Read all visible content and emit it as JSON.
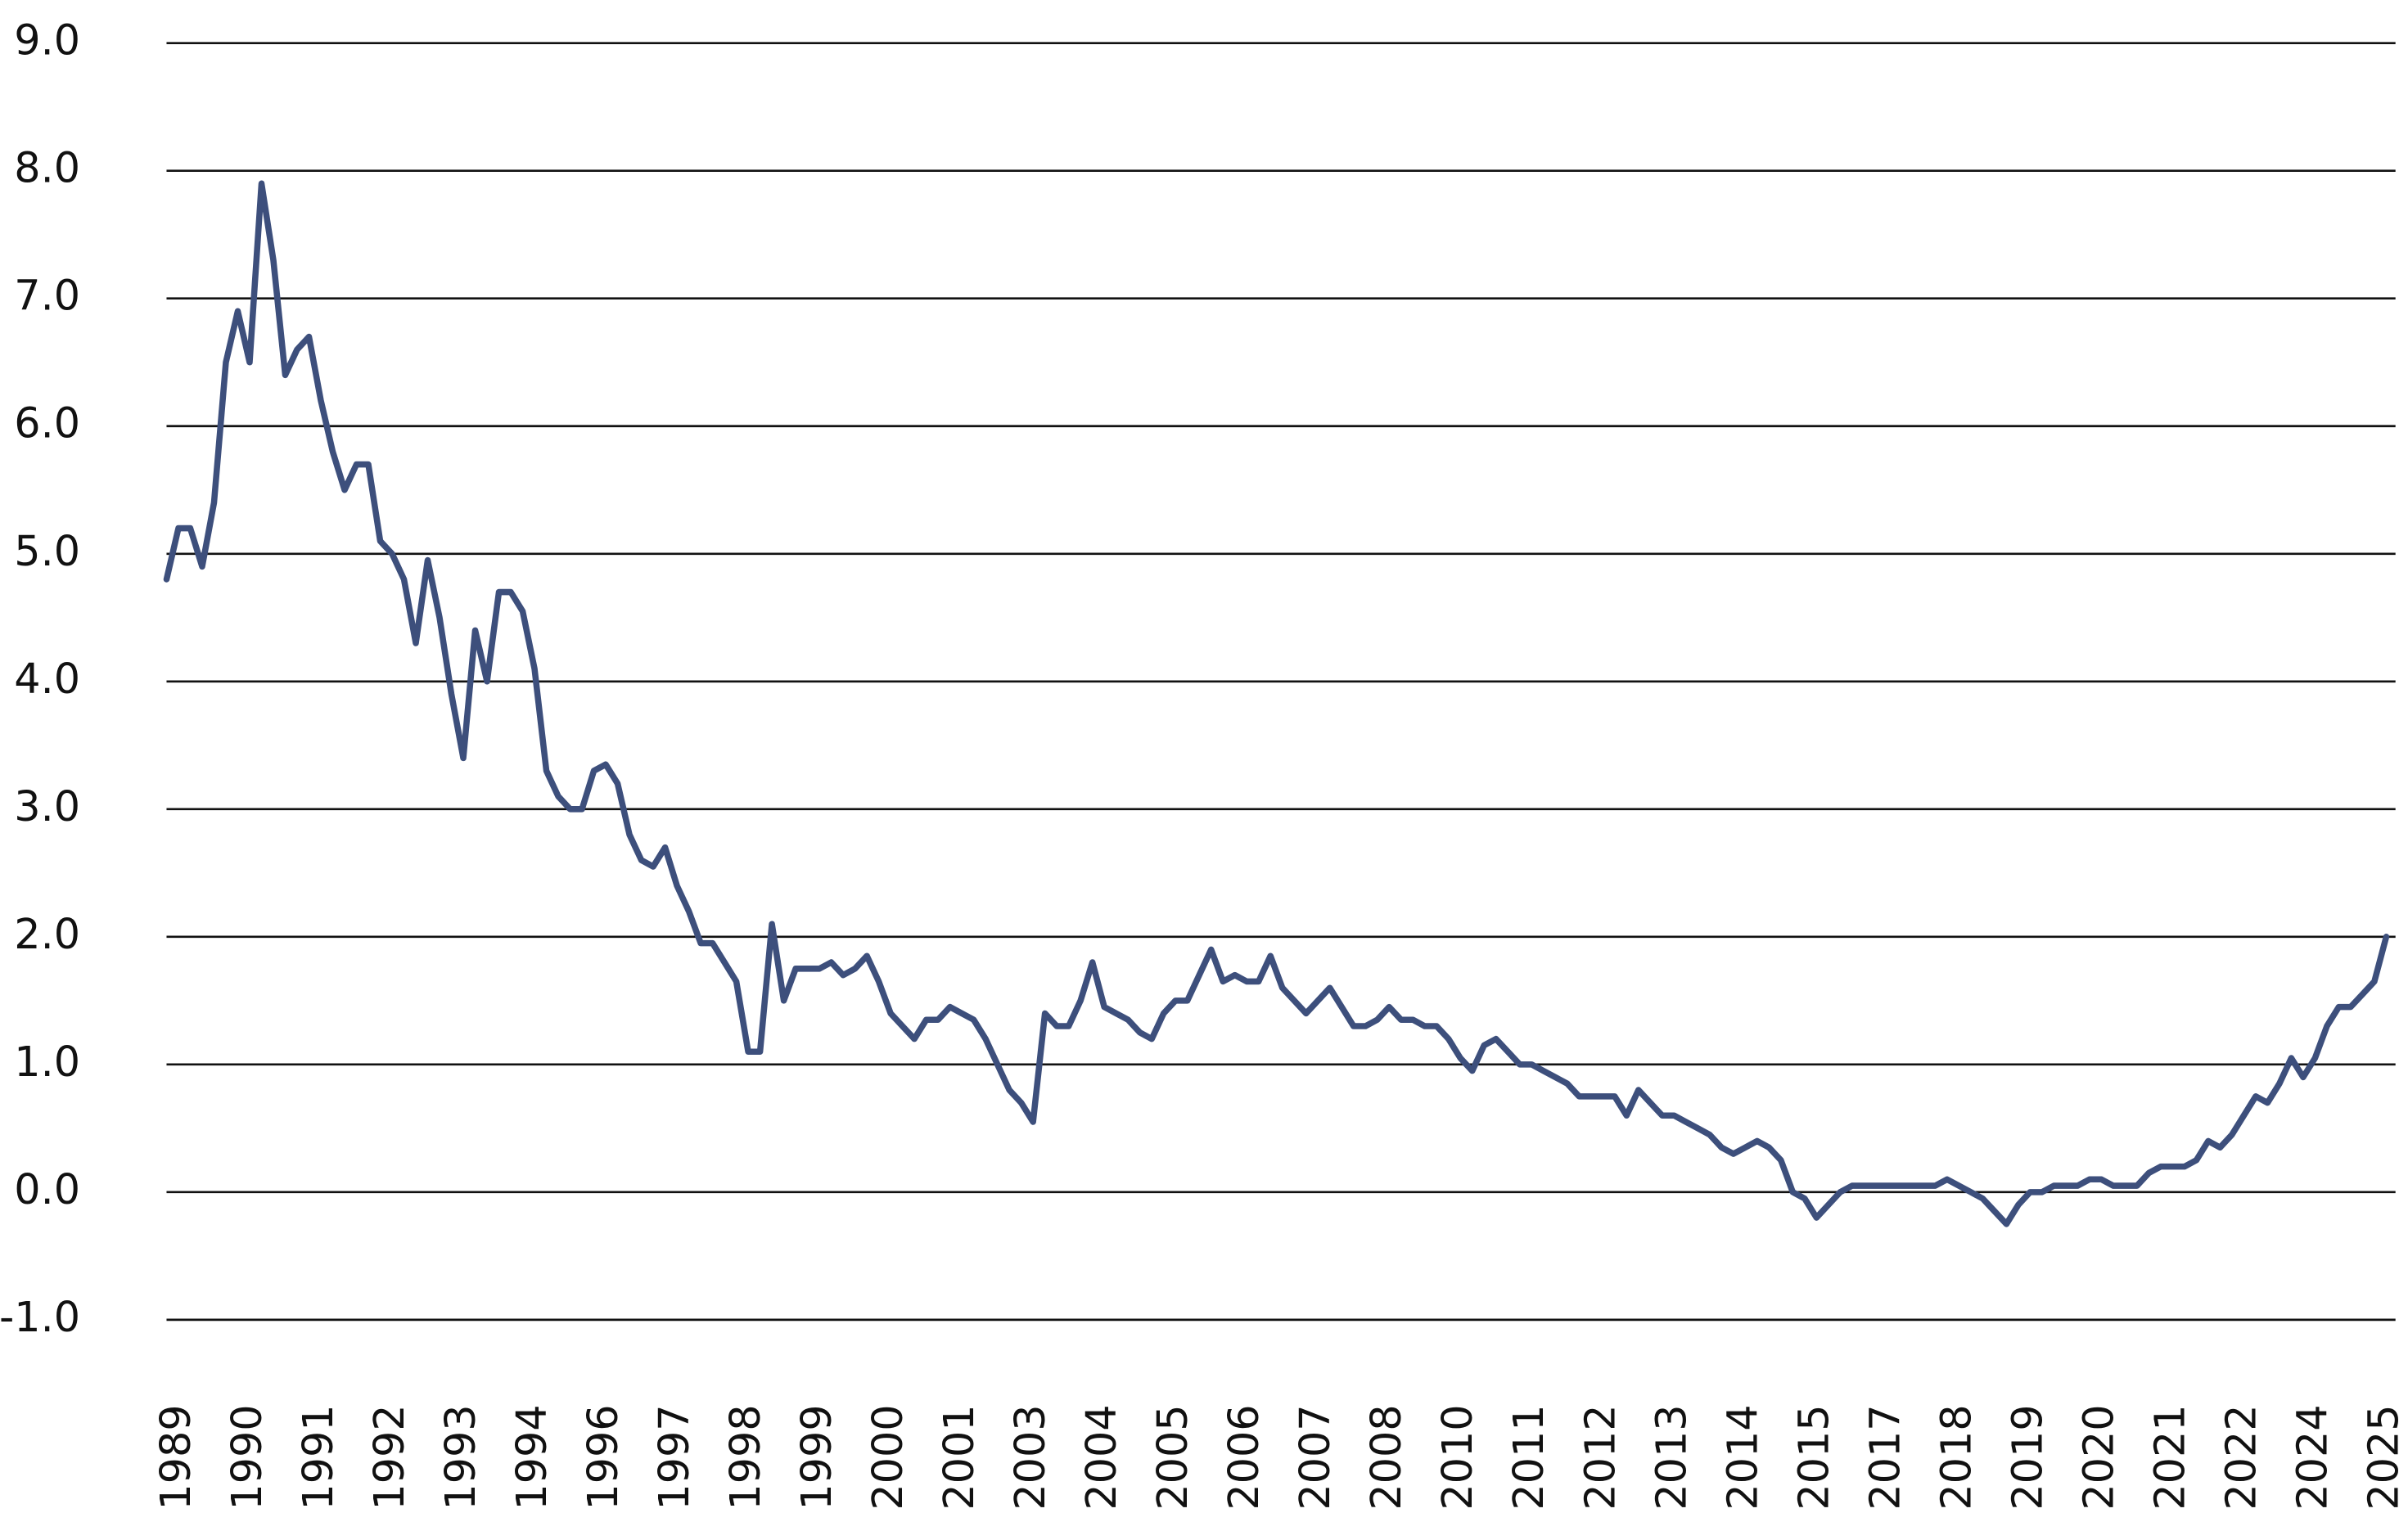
{
  "chart_data": {
    "type": "line",
    "color": "#3d4f7c",
    "grid": true,
    "ylim": [
      -1,
      9
    ],
    "yticks": [
      {
        "value": -1,
        "label": "-1.0"
      },
      {
        "value": 0,
        "label": "0.0"
      },
      {
        "value": 1,
        "label": "1.0"
      },
      {
        "value": 2,
        "label": "2.0"
      },
      {
        "value": 3,
        "label": "3.0"
      },
      {
        "value": 4,
        "label": "4.0"
      },
      {
        "value": 5,
        "label": "5.0"
      },
      {
        "value": 6,
        "label": "6.0"
      },
      {
        "value": 7,
        "label": "7.0"
      },
      {
        "value": 8,
        "label": "8.0"
      },
      {
        "value": 9,
        "label": "9.0"
      }
    ],
    "categories": [
      null,
      "1989",
      null,
      null,
      null,
      null,
      null,
      "1990",
      null,
      null,
      null,
      null,
      null,
      "1991",
      null,
      null,
      null,
      null,
      null,
      "1992",
      null,
      null,
      null,
      null,
      null,
      "1993",
      null,
      null,
      null,
      null,
      null,
      "1994",
      null,
      null,
      null,
      null,
      null,
      "1996",
      null,
      null,
      null,
      null,
      null,
      "1997",
      null,
      null,
      null,
      null,
      null,
      "1998",
      null,
      null,
      null,
      null,
      null,
      "1999",
      null,
      null,
      null,
      null,
      null,
      "2000",
      null,
      null,
      null,
      null,
      null,
      "2001",
      null,
      null,
      null,
      null,
      null,
      "2003",
      null,
      null,
      null,
      null,
      null,
      "2004",
      null,
      null,
      null,
      null,
      null,
      "2005",
      null,
      null,
      null,
      null,
      null,
      "2006",
      null,
      null,
      null,
      null,
      null,
      "2007",
      null,
      null,
      null,
      null,
      null,
      "2008",
      null,
      null,
      null,
      null,
      null,
      "2010",
      null,
      null,
      null,
      null,
      null,
      "2011",
      null,
      null,
      null,
      null,
      null,
      "2012",
      null,
      null,
      null,
      null,
      null,
      "2013",
      null,
      null,
      null,
      null,
      null,
      "2014",
      null,
      null,
      null,
      null,
      null,
      "2015",
      null,
      null,
      null,
      null,
      null,
      "2017",
      null,
      null,
      null,
      null,
      null,
      "2018",
      null,
      null,
      null,
      null,
      null,
      "2019",
      null,
      null,
      null,
      null,
      null,
      "2020",
      null,
      null,
      null,
      null,
      null,
      "2021",
      null,
      null,
      null,
      null,
      null,
      "2022",
      null,
      null,
      null,
      null,
      null,
      "2024",
      null,
      null,
      null,
      null,
      null,
      "2025"
    ],
    "values": [
      4.8,
      5.2,
      5.2,
      4.9,
      5.4,
      6.5,
      6.9,
      6.5,
      7.9,
      7.3,
      6.4,
      6.6,
      6.7,
      6.2,
      5.8,
      5.5,
      5.7,
      5.7,
      5.1,
      5.0,
      4.8,
      4.3,
      4.95,
      4.5,
      3.9,
      3.4,
      4.4,
      4.0,
      4.7,
      4.7,
      4.55,
      4.1,
      3.3,
      3.1,
      3.0,
      3.0,
      3.3,
      3.35,
      3.2,
      2.8,
      2.6,
      2.55,
      2.7,
      2.4,
      2.2,
      1.95,
      1.95,
      1.8,
      1.65,
      1.1,
      1.1,
      2.1,
      1.5,
      1.75,
      1.75,
      1.75,
      1.8,
      1.7,
      1.75,
      1.85,
      1.65,
      1.4,
      1.3,
      1.2,
      1.35,
      1.35,
      1.45,
      1.4,
      1.35,
      1.2,
      1.0,
      0.8,
      0.7,
      0.55,
      1.4,
      1.3,
      1.3,
      1.5,
      1.8,
      1.45,
      1.4,
      1.35,
      1.25,
      1.2,
      1.4,
      1.5,
      1.5,
      1.7,
      1.9,
      1.65,
      1.7,
      1.65,
      1.65,
      1.85,
      1.6,
      1.5,
      1.4,
      1.5,
      1.6,
      1.45,
      1.3,
      1.3,
      1.35,
      1.45,
      1.35,
      1.35,
      1.3,
      1.3,
      1.2,
      1.05,
      0.95,
      1.15,
      1.2,
      1.1,
      1.0,
      1.0,
      0.95,
      0.9,
      0.85,
      0.75,
      0.75,
      0.75,
      0.75,
      0.6,
      0.8,
      0.7,
      0.6,
      0.6,
      0.55,
      0.5,
      0.45,
      0.35,
      0.3,
      0.35,
      0.4,
      0.35,
      0.25,
      0.0,
      -0.05,
      -0.2,
      -0.1,
      0.0,
      0.05,
      0.05,
      0.05,
      0.05,
      0.05,
      0.05,
      0.05,
      0.05,
      0.1,
      0.05,
      0.0,
      -0.05,
      -0.15,
      -0.25,
      -0.1,
      0.0,
      0.0,
      0.05,
      0.05,
      0.05,
      0.1,
      0.1,
      0.05,
      0.05,
      0.05,
      0.15,
      0.2,
      0.2,
      0.2,
      0.25,
      0.4,
      0.35,
      0.45,
      0.6,
      0.75,
      0.7,
      0.85,
      1.05,
      0.9,
      1.05,
      1.3,
      1.45,
      1.45,
      1.55,
      1.65,
      2.0
    ]
  }
}
